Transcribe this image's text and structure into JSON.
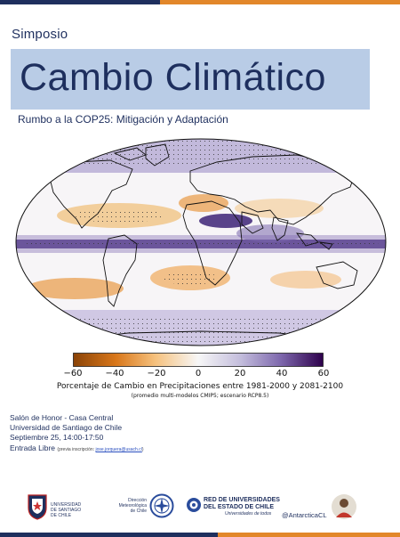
{
  "header": {
    "kicker": "Simposio",
    "title": "Cambio Climático",
    "subtitle": "Rumbo a la COP25: Mitigación y Adaptación"
  },
  "colors": {
    "navy": "#1e2f5e",
    "orange": "#e2872a",
    "title_box": "#b9cce6",
    "drying": "#b35806",
    "wetting": "#2d004b"
  },
  "colorbar": {
    "ticks": [
      "−60",
      "−40",
      "−20",
      "0",
      "20",
      "40",
      "60"
    ],
    "caption": "Porcentaje de Cambio en Precipitaciones entre 1981-2000 y 2081-2100",
    "note": "(promedio multi-modelos CMIP5; escenario RCP8.5)",
    "range": [
      -60,
      60
    ]
  },
  "event": {
    "venue": "Salón de Honor - Casa Central",
    "university": "Universidad de Santiago de Chile",
    "date": "Septiembre 25, 14:00-17:50",
    "entry": "Entrada Libre",
    "registration_prefix": "(previa inscripción: ",
    "registration_email": "jose.jorquera@usach.cl",
    "registration_suffix": ")"
  },
  "logos": {
    "usach": [
      "UNIVERSIDAD",
      "DE SANTIAGO",
      "DE CHILE"
    ],
    "dmc": [
      "Dirección",
      "Meteorológica",
      "de Chile"
    ],
    "red": [
      "RED DE UNIVERSIDADES",
      "DEL ESTADO DE CHILE"
    ],
    "red_sub": "Universidades de todos",
    "handle": "@AntarcticaCL"
  }
}
